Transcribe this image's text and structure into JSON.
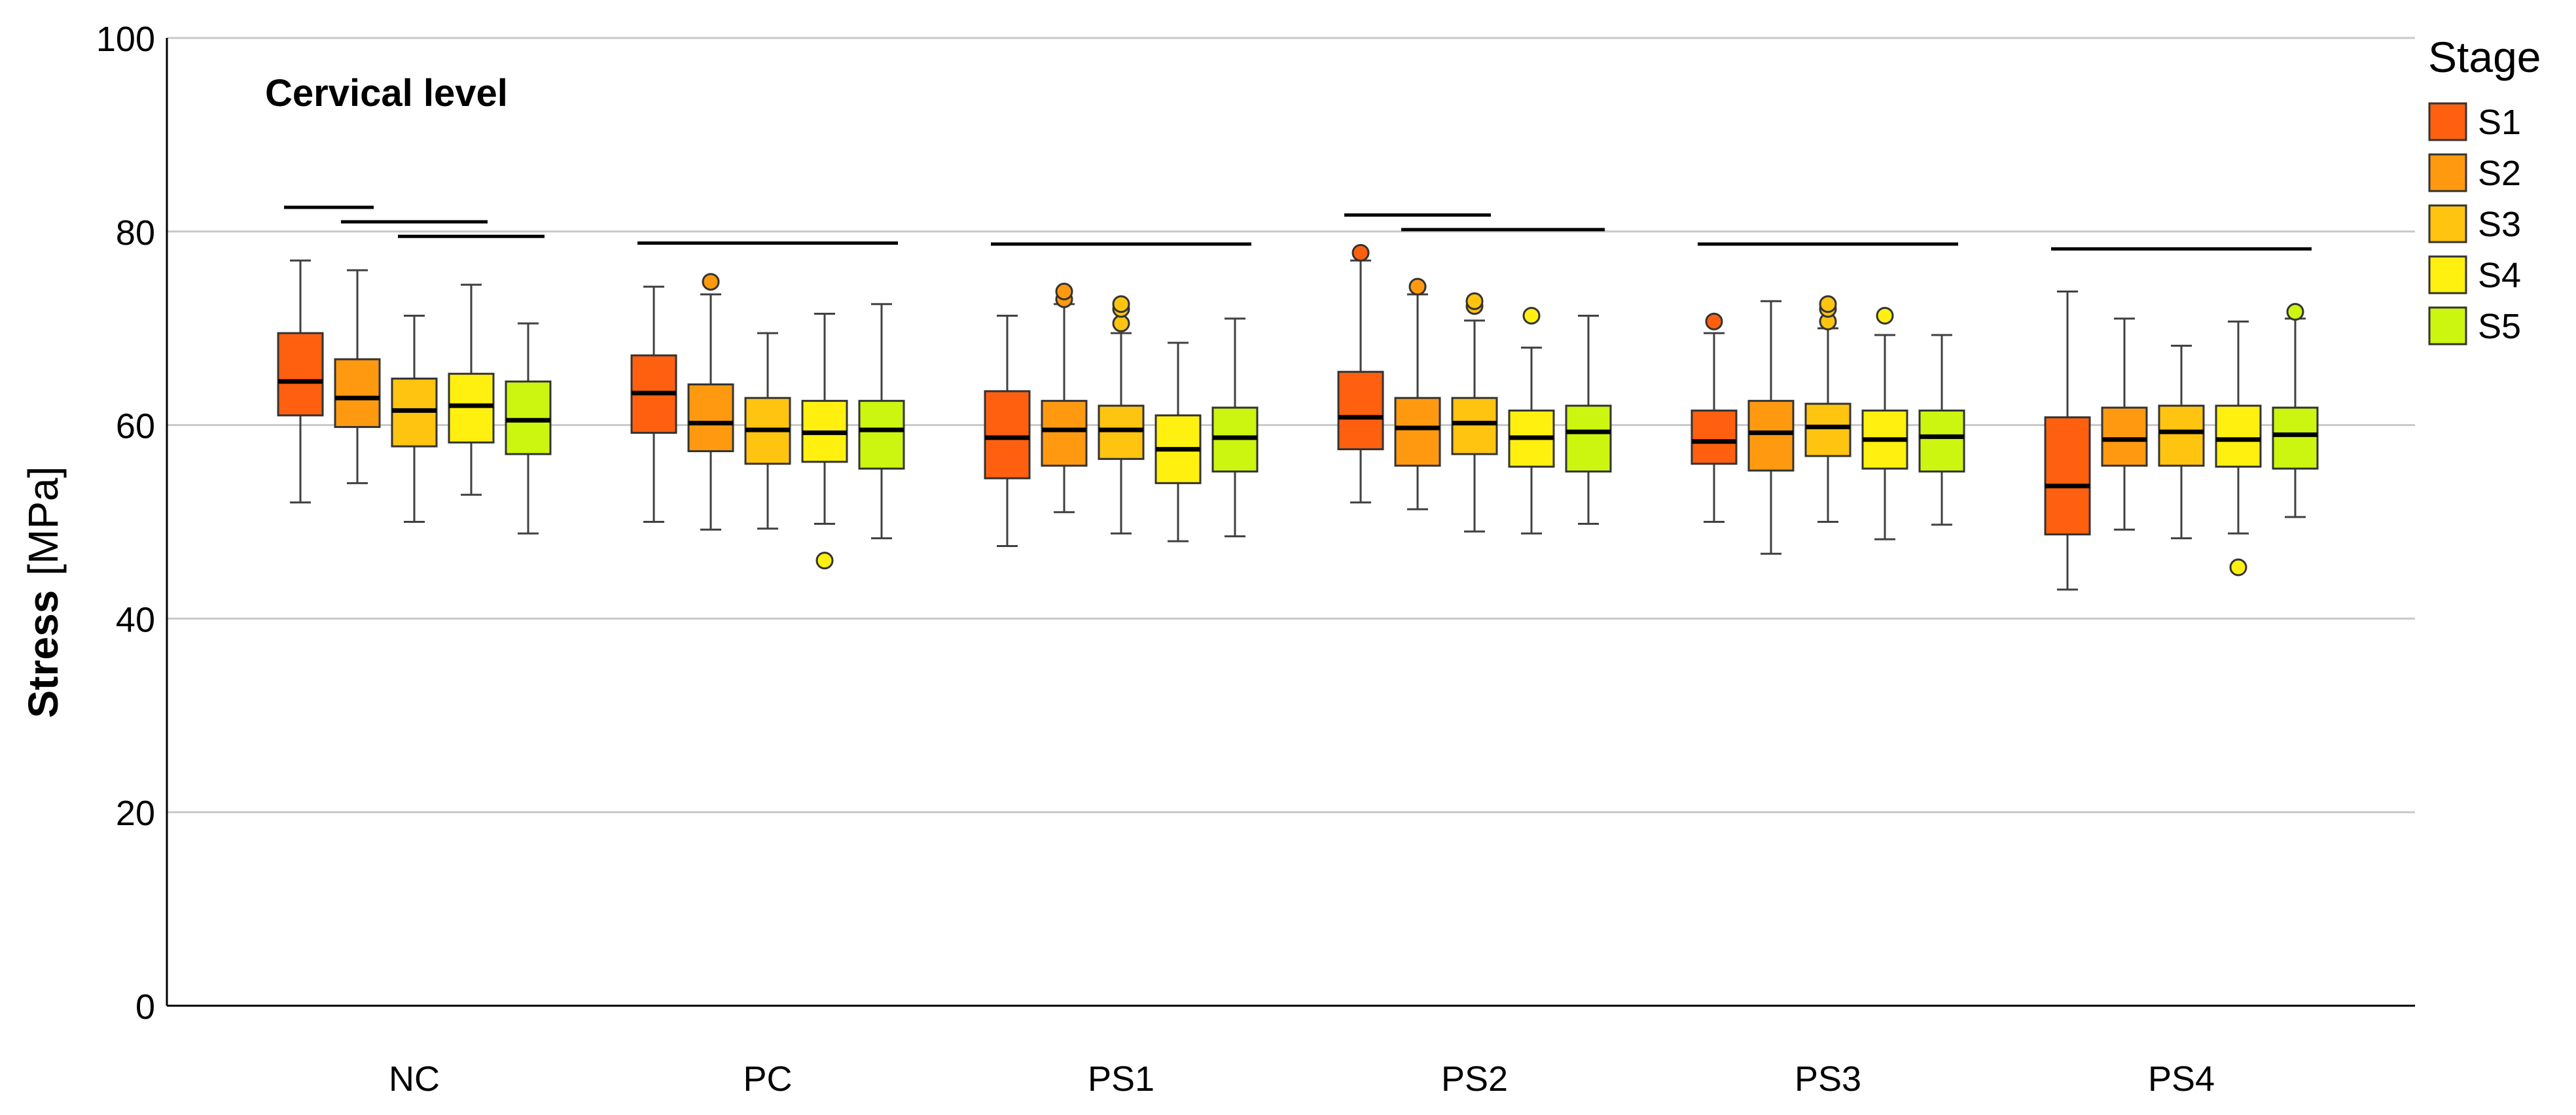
{
  "chart_data": {
    "type": "boxplot",
    "title": "Cervical level",
    "xlabel": "",
    "ylabel": "Stress",
    "ylabel_unit": "[MPa]",
    "ylim": [
      0,
      100
    ],
    "yticks": [
      0,
      20,
      40,
      60,
      80,
      100
    ],
    "grid": "horizontal",
    "legend_title": "Stage",
    "legend_position": "right",
    "series_names": [
      "S1",
      "S2",
      "S3",
      "S4",
      "S5"
    ],
    "colors": [
      "#FF6010",
      "#FF9A10",
      "#FFC410",
      "#FFF010",
      "#CCF510"
    ],
    "categories": [
      "NC",
      "PC",
      "PS1",
      "PS2",
      "PS3",
      "PS4"
    ],
    "groups": [
      {
        "category": "NC",
        "boxes": [
          {
            "series": "S1",
            "min": 52.0,
            "q1": 61.0,
            "median": 64.5,
            "q3": 69.5,
            "max": 77.0,
            "outliers": []
          },
          {
            "series": "S2",
            "min": 54.0,
            "q1": 59.8,
            "median": 62.8,
            "q3": 66.8,
            "max": 76.0,
            "outliers": []
          },
          {
            "series": "S3",
            "min": 50.0,
            "q1": 57.8,
            "median": 61.5,
            "q3": 64.8,
            "max": 71.3,
            "outliers": []
          },
          {
            "series": "S4",
            "min": 52.8,
            "q1": 58.2,
            "median": 62.0,
            "q3": 65.3,
            "max": 74.5,
            "outliers": []
          },
          {
            "series": "S5",
            "min": 48.8,
            "q1": 57.0,
            "median": 60.5,
            "q3": 64.5,
            "max": 70.5,
            "outliers": []
          }
        ],
        "significance_bars": [
          {
            "from": 1,
            "to": 2,
            "y": 82.5
          },
          {
            "from": 2,
            "to": 4,
            "y": 81.0
          },
          {
            "from": 3,
            "to": 5,
            "y": 79.5
          }
        ]
      },
      {
        "category": "PC",
        "boxes": [
          {
            "series": "S1",
            "min": 50.0,
            "q1": 59.2,
            "median": 63.3,
            "q3": 67.2,
            "max": 74.3,
            "outliers": []
          },
          {
            "series": "S2",
            "min": 49.2,
            "q1": 57.3,
            "median": 60.2,
            "q3": 64.2,
            "max": 73.5,
            "outliers": [
              74.8
            ]
          },
          {
            "series": "S3",
            "min": 49.3,
            "q1": 56.0,
            "median": 59.5,
            "q3": 62.8,
            "max": 69.5,
            "outliers": []
          },
          {
            "series": "S4",
            "min": 49.8,
            "q1": 56.2,
            "median": 59.2,
            "q3": 62.5,
            "max": 71.5,
            "outliers": [
              46.0
            ]
          },
          {
            "series": "S5",
            "min": 48.3,
            "q1": 55.5,
            "median": 59.5,
            "q3": 62.5,
            "max": 72.5,
            "outliers": []
          }
        ],
        "significance_bars": [
          {
            "from": 1,
            "to": 5,
            "y": 78.8
          }
        ]
      },
      {
        "category": "PS1",
        "boxes": [
          {
            "series": "S1",
            "min": 47.5,
            "q1": 54.5,
            "median": 58.7,
            "q3": 63.5,
            "max": 71.3,
            "outliers": []
          },
          {
            "series": "S2",
            "min": 51.0,
            "q1": 55.8,
            "median": 59.5,
            "q3": 62.5,
            "max": 72.5,
            "outliers": [
              73.0,
              73.8
            ]
          },
          {
            "series": "S3",
            "min": 48.8,
            "q1": 56.5,
            "median": 59.5,
            "q3": 62.0,
            "max": 69.5,
            "outliers": [
              70.5,
              72.0,
              72.5
            ]
          },
          {
            "series": "S4",
            "min": 48.0,
            "q1": 54.0,
            "median": 57.5,
            "q3": 61.0,
            "max": 68.5,
            "outliers": []
          },
          {
            "series": "S5",
            "min": 48.5,
            "q1": 55.2,
            "median": 58.7,
            "q3": 61.8,
            "max": 71.0,
            "outliers": []
          }
        ],
        "significance_bars": [
          {
            "from": 1,
            "to": 5,
            "y": 78.7
          }
        ]
      },
      {
        "category": "PS2",
        "boxes": [
          {
            "series": "S1",
            "min": 52.0,
            "q1": 57.5,
            "median": 60.8,
            "q3": 65.5,
            "max": 77.0,
            "outliers": [
              77.8
            ]
          },
          {
            "series": "S2",
            "min": 51.3,
            "q1": 55.8,
            "median": 59.7,
            "q3": 62.8,
            "max": 73.5,
            "outliers": [
              74.3
            ]
          },
          {
            "series": "S3",
            "min": 49.0,
            "q1": 57.0,
            "median": 60.2,
            "q3": 62.8,
            "max": 70.8,
            "outliers": [
              72.3,
              72.8
            ]
          },
          {
            "series": "S4",
            "min": 48.8,
            "q1": 55.7,
            "median": 58.7,
            "q3": 61.5,
            "max": 68.0,
            "outliers": [
              71.3
            ]
          },
          {
            "series": "S5",
            "min": 49.8,
            "q1": 55.2,
            "median": 59.3,
            "q3": 62.0,
            "max": 71.3,
            "outliers": []
          }
        ],
        "significance_bars": [
          {
            "from": 1,
            "to": 3,
            "y": 81.7
          },
          {
            "from": 2,
            "to": 5,
            "y": 80.2
          }
        ]
      },
      {
        "category": "PS3",
        "boxes": [
          {
            "series": "S1",
            "min": 50.0,
            "q1": 56.0,
            "median": 58.3,
            "q3": 61.5,
            "max": 69.5,
            "outliers": [
              70.7
            ]
          },
          {
            "series": "S2",
            "min": 46.7,
            "q1": 55.3,
            "median": 59.2,
            "q3": 62.5,
            "max": 72.8,
            "outliers": []
          },
          {
            "series": "S3",
            "min": 50.0,
            "q1": 56.8,
            "median": 59.8,
            "q3": 62.2,
            "max": 70.0,
            "outliers": [
              70.7,
              72.0,
              72.5
            ]
          },
          {
            "series": "S4",
            "min": 48.2,
            "q1": 55.5,
            "median": 58.5,
            "q3": 61.5,
            "max": 69.3,
            "outliers": [
              71.3
            ]
          },
          {
            "series": "S5",
            "min": 49.7,
            "q1": 55.2,
            "median": 58.8,
            "q3": 61.5,
            "max": 69.3,
            "outliers": []
          }
        ],
        "significance_bars": [
          {
            "from": 1,
            "to": 5,
            "y": 78.7
          }
        ]
      },
      {
        "category": "PS4",
        "boxes": [
          {
            "series": "S1",
            "min": 43.0,
            "q1": 48.7,
            "median": 53.7,
            "q3": 60.8,
            "max": 73.8,
            "outliers": []
          },
          {
            "series": "S2",
            "min": 49.2,
            "q1": 55.8,
            "median": 58.5,
            "q3": 61.8,
            "max": 71.0,
            "outliers": []
          },
          {
            "series": "S3",
            "min": 48.3,
            "q1": 55.8,
            "median": 59.3,
            "q3": 62.0,
            "max": 68.2,
            "outliers": []
          },
          {
            "series": "S4",
            "min": 48.8,
            "q1": 55.7,
            "median": 58.5,
            "q3": 62.0,
            "max": 70.7,
            "outliers": [
              45.3
            ]
          },
          {
            "series": "S5",
            "min": 50.5,
            "q1": 55.5,
            "median": 59.0,
            "q3": 61.8,
            "max": 71.0,
            "outliers": [
              71.7
            ]
          }
        ],
        "significance_bars": [
          {
            "from": 1,
            "to": 5,
            "y": 78.2
          }
        ]
      }
    ]
  }
}
